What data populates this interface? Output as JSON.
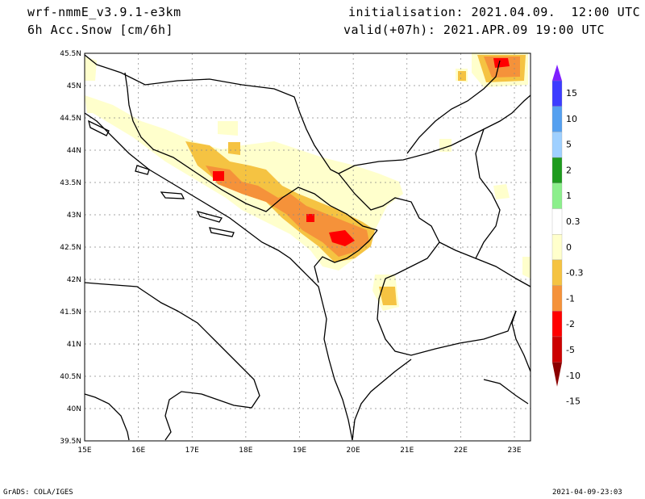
{
  "header": {
    "model": "wrf-nmmE_v3.9.1-e3km",
    "field": "6h Acc.Snow [cm/6h]",
    "initialisation": "initialisation: 2021.04.09.  12:00 UTC",
    "valid": "valid(+07h): 2021.APR.09 19:00 UTC"
  },
  "map": {
    "lon_ticks": [
      "15E",
      "16E",
      "17E",
      "18E",
      "19E",
      "20E",
      "21E",
      "22E",
      "23E"
    ],
    "lat_ticks": [
      "45.5N",
      "45N",
      "44.5N",
      "44N",
      "43.5N",
      "43N",
      "42.5N",
      "42N",
      "41.5N",
      "41N",
      "40.5N",
      "40N",
      "39.5N"
    ],
    "lon_range": [
      15,
      23.3
    ],
    "lat_range": [
      39.5,
      45.5
    ],
    "grid": true
  },
  "colorbar": {
    "labels": [
      "15",
      "10",
      "5",
      "2",
      "1",
      "0.3",
      "0",
      "-0.3",
      "-1",
      "-2",
      "-5",
      "-10",
      "-15"
    ],
    "colors": [
      "#7f1fff",
      "#3c3cff",
      "#55a0f0",
      "#9fd0ff",
      "#1e9b1e",
      "#8cef8c",
      "#ffffff",
      "#ffffcc",
      "#f5c342",
      "#f5923a",
      "#ff0000",
      "#cc0000",
      "#8b0000"
    ]
  },
  "footer": {
    "left": "GrADS: COLA/IGES",
    "right": "2021-04-09-23:03"
  }
}
